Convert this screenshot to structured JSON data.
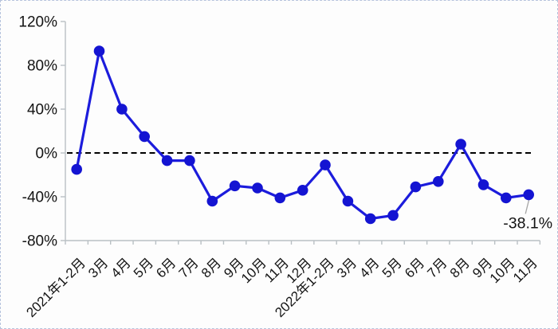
{
  "frame": {
    "background": "#fdfdfd",
    "border_color": "#b6c3dd"
  },
  "chart_data": {
    "type": "line",
    "title": "",
    "xlabel": "",
    "ylabel": "",
    "categories": [
      "2021年1-2月",
      "3月",
      "4月",
      "5月",
      "6月",
      "7月",
      "8月",
      "9月",
      "10月",
      "11月",
      "12月",
      "2022年1-2月",
      "3月",
      "4月",
      "5月",
      "6月",
      "7月",
      "8月",
      "9月",
      "10月",
      "11月"
    ],
    "values": [
      -15,
      93,
      40,
      15,
      -7,
      -7,
      -44,
      -30,
      -32,
      -41,
      -34,
      -11,
      -44,
      -60,
      -57,
      -31,
      -26,
      8,
      -29,
      -41,
      -38.1
    ],
    "ylim": [
      -80,
      120
    ],
    "y_ticks": [
      120,
      80,
      40,
      0,
      -40,
      -80
    ],
    "y_tick_labels": [
      "120%",
      "80%",
      "40%",
      "0%",
      "-40%",
      "-80%"
    ],
    "grid": false,
    "legend": "none",
    "zero_line_style": "dashed",
    "annotation": {
      "text": "-38.1%",
      "point_index": 20
    },
    "colors": {
      "line": "#1c1cdc",
      "marker": "#1414d2",
      "zero_line": "#000000",
      "axis": "#b9c0c4",
      "x_label": "#141414",
      "y_label": "#141414",
      "annotation_text": "#1a1a1a",
      "annotation_leader": "#a6a6a6"
    }
  }
}
